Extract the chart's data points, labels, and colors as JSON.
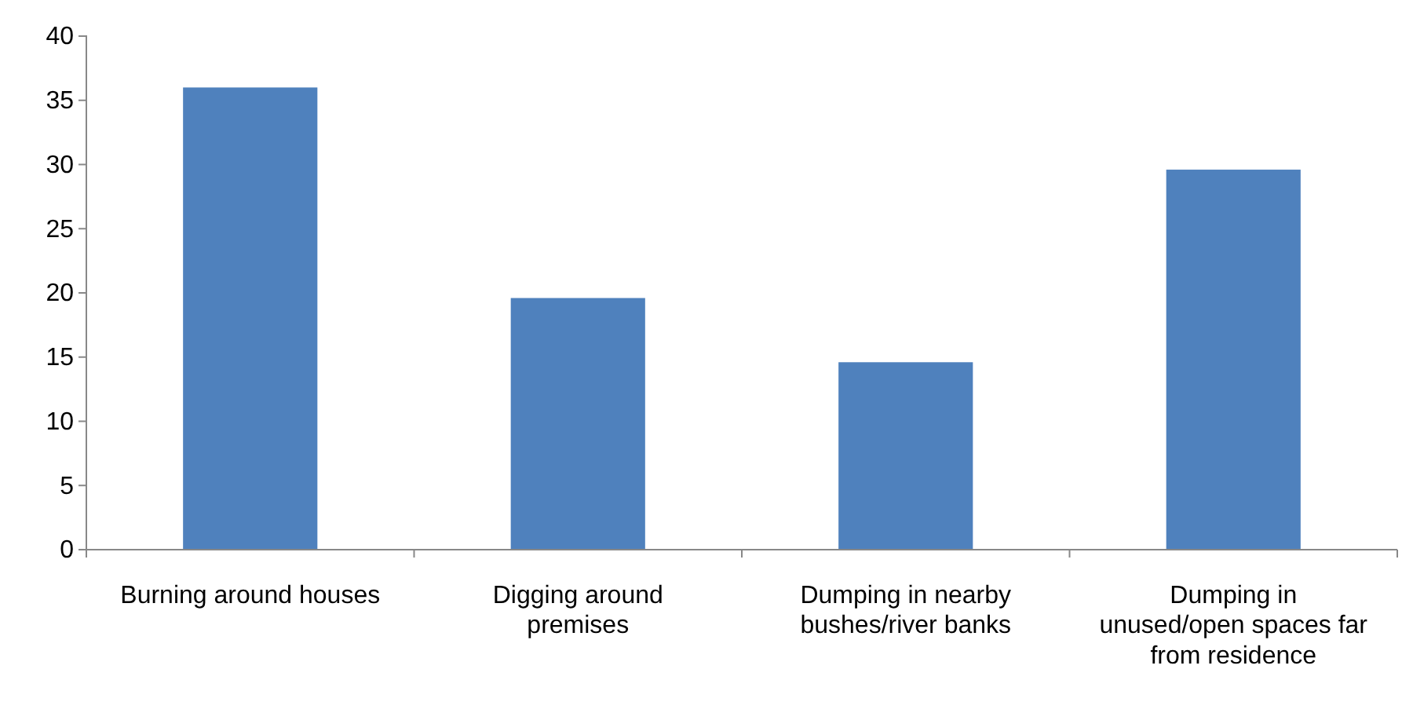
{
  "chart_data": {
    "type": "bar",
    "categories": [
      "Burning around houses",
      "Digging around premises",
      "Dumping in nearby bushes/river banks",
      "Dumping in unused/open spaces far from residence"
    ],
    "values": [
      36,
      19.6,
      14.6,
      29.6
    ],
    "color": "#4f81bd",
    "ylim": [
      0,
      40
    ],
    "yticks": [
      0,
      5,
      10,
      15,
      20,
      25,
      30,
      35,
      40
    ],
    "grid": false
  }
}
